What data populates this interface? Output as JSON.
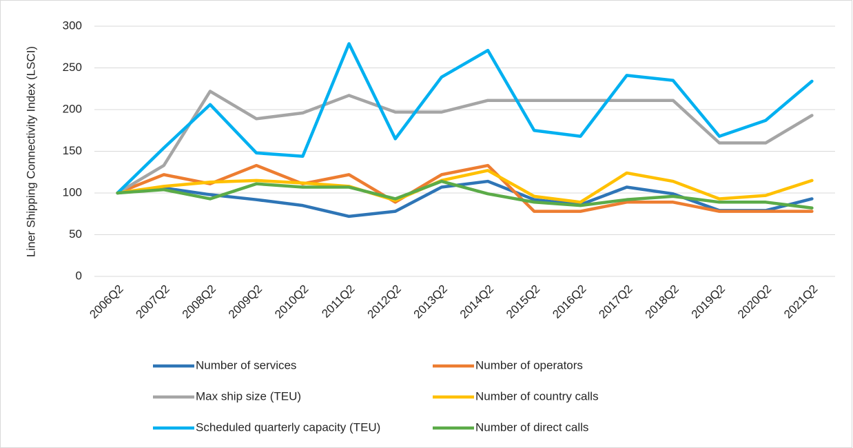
{
  "chart_data": {
    "type": "line",
    "ylabel": "Liner Shipping Connectivity Index (LSCI)",
    "categories": [
      "2006Q2",
      "2007Q2",
      "2008Q2",
      "2009Q2",
      "2010Q2",
      "2011Q2",
      "2012Q2",
      "2013Q2",
      "2014Q2",
      "2015Q2",
      "2016Q2",
      "2017Q2",
      "2018Q2",
      "2019Q2",
      "2020Q2",
      "2021Q2"
    ],
    "series": [
      {
        "name": "Number of services",
        "color": "#2e75b6",
        "values": [
          100,
          106,
          98,
          92,
          85,
          72,
          78,
          107,
          114,
          92,
          86,
          107,
          99,
          79,
          79,
          93
        ]
      },
      {
        "name": "Number of operators",
        "color": "#ed7d31",
        "values": [
          100,
          122,
          111,
          133,
          111,
          122,
          89,
          122,
          133,
          78,
          78,
          89,
          89,
          78,
          78,
          78
        ]
      },
      {
        "name": "Max ship size (TEU)",
        "color": "#a5a5a5",
        "values": [
          100,
          133,
          222,
          189,
          196,
          217,
          197,
          197,
          211,
          211,
          211,
          211,
          211,
          160,
          160,
          193
        ]
      },
      {
        "name": "Number of country calls",
        "color": "#ffc000",
        "values": [
          100,
          108,
          113,
          115,
          112,
          108,
          91,
          115,
          127,
          96,
          89,
          124,
          114,
          93,
          97,
          115
        ]
      },
      {
        "name": "Scheduled quarterly capacity (TEU)",
        "color": "#00b0f0",
        "values": [
          100,
          154,
          206,
          148,
          144,
          279,
          165,
          239,
          271,
          175,
          168,
          241,
          235,
          168,
          187,
          234
        ]
      },
      {
        "name": "Number of direct calls",
        "color": "#5bab48",
        "values": [
          100,
          104,
          93,
          111,
          107,
          107,
          93,
          114,
          99,
          89,
          85,
          92,
          96,
          89,
          89,
          82
        ]
      }
    ],
    "ylim": [
      0,
      300
    ],
    "yticks": [
      0,
      50,
      100,
      150,
      200,
      250,
      300
    ],
    "grid": true
  }
}
